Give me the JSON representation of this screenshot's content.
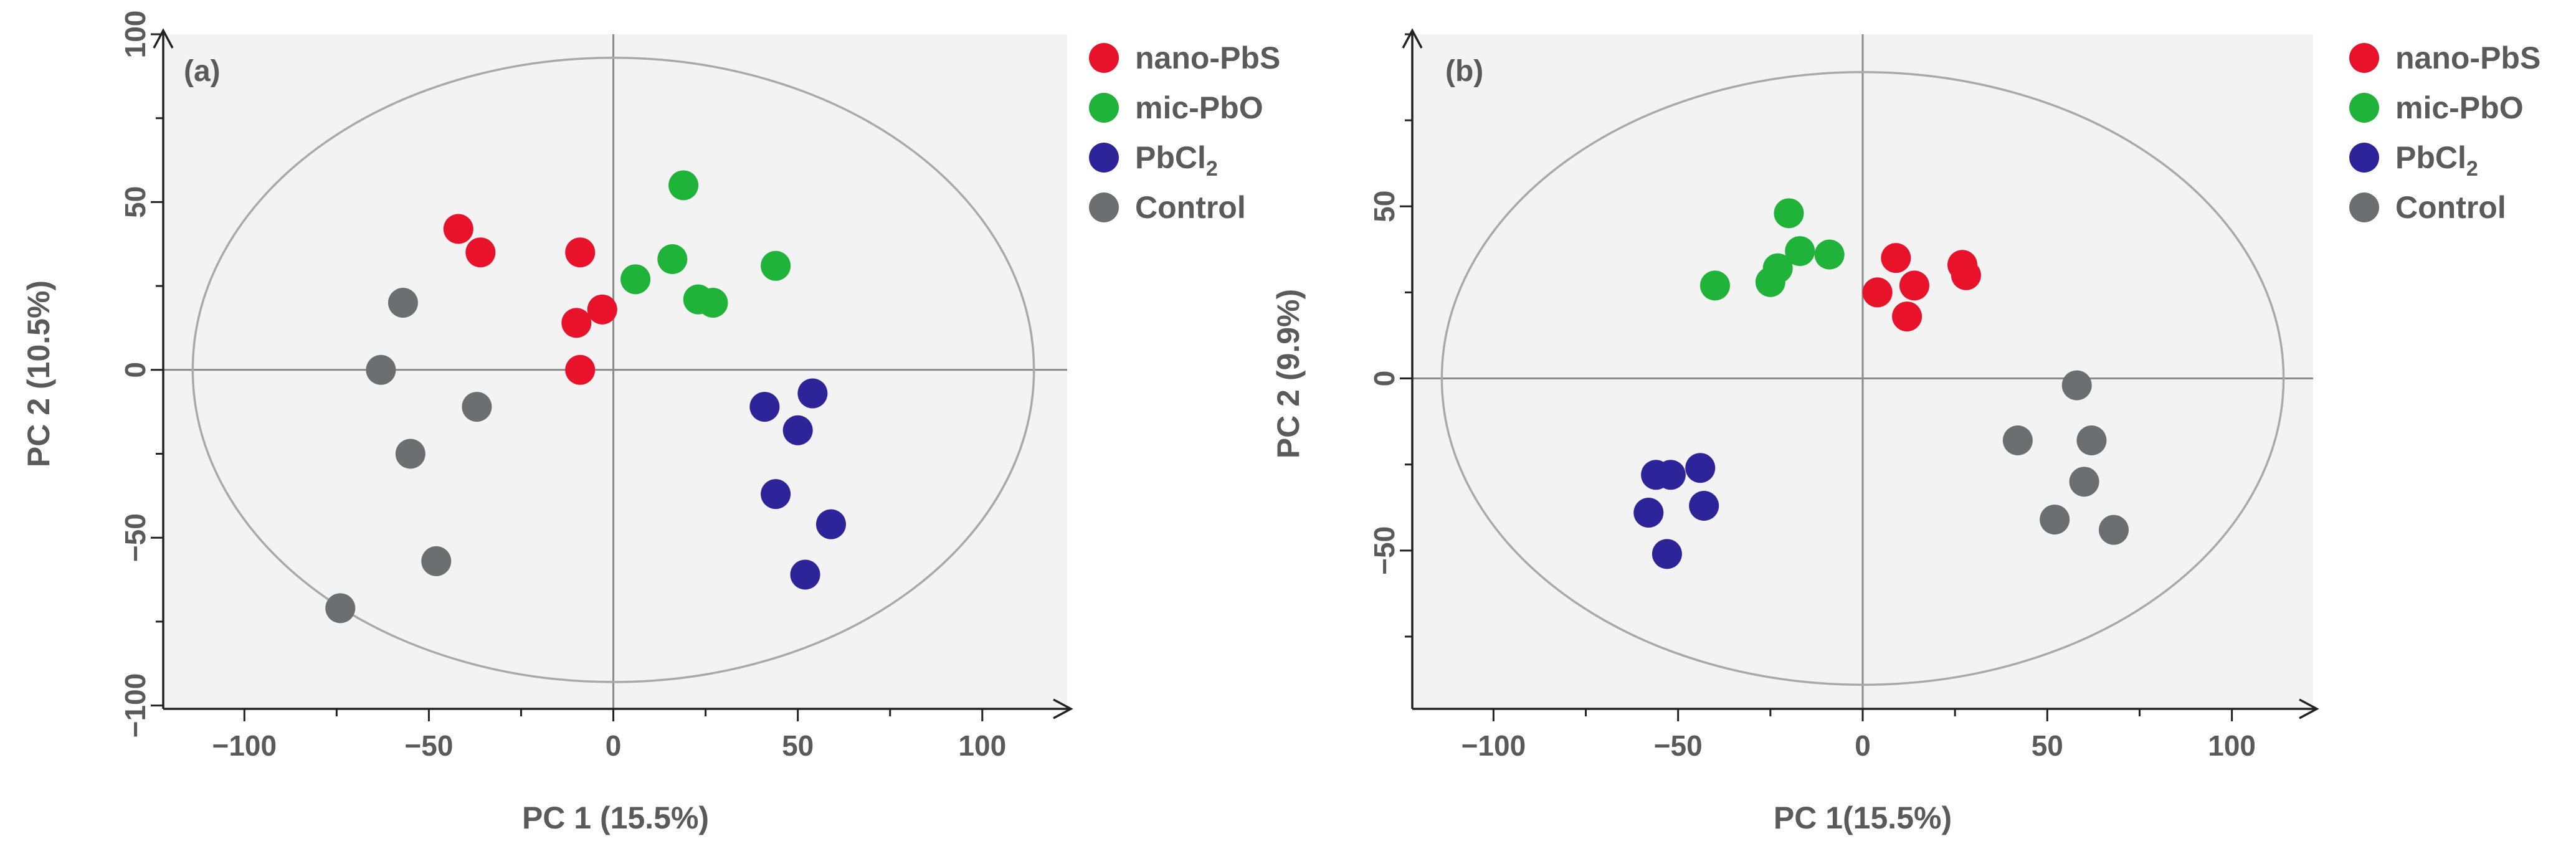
{
  "colors": {
    "nano_pbs": "#e8122a",
    "mic_pbo": "#1fb33a",
    "pbcl2": "#2e2499",
    "control": "#6d6e70",
    "plot_bg": "#f3f3f3",
    "ellipse": "#a9a9a9",
    "crosshair": "#8a8a8a",
    "axis": "#222222",
    "text": "#5a5a5a"
  },
  "chart_data": [
    {
      "type": "scatter",
      "panel_label": "(a)",
      "xlabel": "PC 1 (15.5%)",
      "ylabel": "PC 2 (10.5%)",
      "xlim": [
        -122,
        123
      ],
      "ylim": [
        -101,
        100
      ],
      "xticks": [
        -100,
        -50,
        0,
        50,
        100
      ],
      "xtick_labels": [
        "−100",
        "−50",
        "0",
        "50",
        "100"
      ],
      "yticks": [
        -100,
        -50,
        0,
        50,
        100
      ],
      "ytick_labels": [
        "−100",
        "−50",
        "0",
        "50",
        "100"
      ],
      "ellipse": {
        "cx": 0,
        "cy": 0,
        "rx": 114,
        "ry": 93
      },
      "legend_position": "outside-right",
      "legend": [
        {
          "key": "nano_pbs",
          "label": "nano-PbS"
        },
        {
          "key": "mic_pbo",
          "label": "mic-PbO"
        },
        {
          "key": "pbcl2",
          "label": "PbCl",
          "subscript": "2"
        },
        {
          "key": "control",
          "label": "Control"
        }
      ],
      "series": [
        {
          "name": "nano-PbS",
          "color_key": "nano_pbs",
          "points": [
            [
              -42,
              42
            ],
            [
              -36,
              35
            ],
            [
              -9,
              35
            ],
            [
              -10,
              14
            ],
            [
              -3,
              18
            ],
            [
              -9,
              0
            ]
          ]
        },
        {
          "name": "mic-PbO",
          "color_key": "mic_pbo",
          "points": [
            [
              19,
              55
            ],
            [
              16,
              33
            ],
            [
              6,
              27
            ],
            [
              23,
              21
            ],
            [
              27,
              20
            ],
            [
              44,
              31
            ]
          ]
        },
        {
          "name": "PbCl2",
          "color_key": "pbcl2",
          "points": [
            [
              41,
              -11
            ],
            [
              54,
              -7
            ],
            [
              50,
              -18
            ],
            [
              44,
              -37
            ],
            [
              59,
              -46
            ],
            [
              52,
              -61
            ]
          ]
        },
        {
          "name": "Control",
          "color_key": "control",
          "points": [
            [
              -57,
              20
            ],
            [
              -63,
              0
            ],
            [
              -37,
              -11
            ],
            [
              -55,
              -25
            ],
            [
              -48,
              -57
            ],
            [
              -74,
              -71
            ]
          ]
        }
      ]
    },
    {
      "type": "scatter",
      "panel_label": "(b)",
      "xlabel": "PC 1(15.5%)",
      "ylabel": "PC 2 (9.9%)",
      "xlim": [
        -122,
        122
      ],
      "ylim": [
        -96,
        100
      ],
      "xticks": [
        -100,
        -50,
        0,
        50,
        100
      ],
      "xtick_labels": [
        "−100",
        "−50",
        "0",
        "50",
        "100"
      ],
      "yticks": [
        -50,
        0,
        50
      ],
      "ytick_labels": [
        "−50",
        "0",
        "50"
      ],
      "ellipse": {
        "cx": 0,
        "cy": 0,
        "rx": 114,
        "ry": 89
      },
      "legend_position": "outside-right",
      "legend": [
        {
          "key": "nano_pbs",
          "label": "nano-PbS"
        },
        {
          "key": "mic_pbo",
          "label": "mic-PbO"
        },
        {
          "key": "pbcl2",
          "label": "PbCl",
          "subscript": "2"
        },
        {
          "key": "control",
          "label": "Control"
        }
      ],
      "series": [
        {
          "name": "nano-PbS",
          "color_key": "nano_pbs",
          "points": [
            [
              9,
              35
            ],
            [
              27,
              33
            ],
            [
              28,
              30
            ],
            [
              14,
              27
            ],
            [
              4,
              25
            ],
            [
              12,
              18
            ]
          ]
        },
        {
          "name": "mic-PbO",
          "color_key": "mic_pbo",
          "points": [
            [
              -20,
              48
            ],
            [
              -17,
              37
            ],
            [
              -9,
              36
            ],
            [
              -23,
              32
            ],
            [
              -25,
              28
            ],
            [
              -40,
              27
            ]
          ]
        },
        {
          "name": "PbCl2",
          "color_key": "pbcl2",
          "points": [
            [
              -56,
              -28
            ],
            [
              -52,
              -28
            ],
            [
              -44,
              -26
            ],
            [
              -43,
              -37
            ],
            [
              -58,
              -39
            ],
            [
              -53,
              -51
            ]
          ]
        },
        {
          "name": "Control",
          "color_key": "control",
          "points": [
            [
              58,
              -2
            ],
            [
              42,
              -18
            ],
            [
              62,
              -18
            ],
            [
              60,
              -30
            ],
            [
              52,
              -41
            ],
            [
              68,
              -44
            ]
          ]
        }
      ]
    }
  ]
}
